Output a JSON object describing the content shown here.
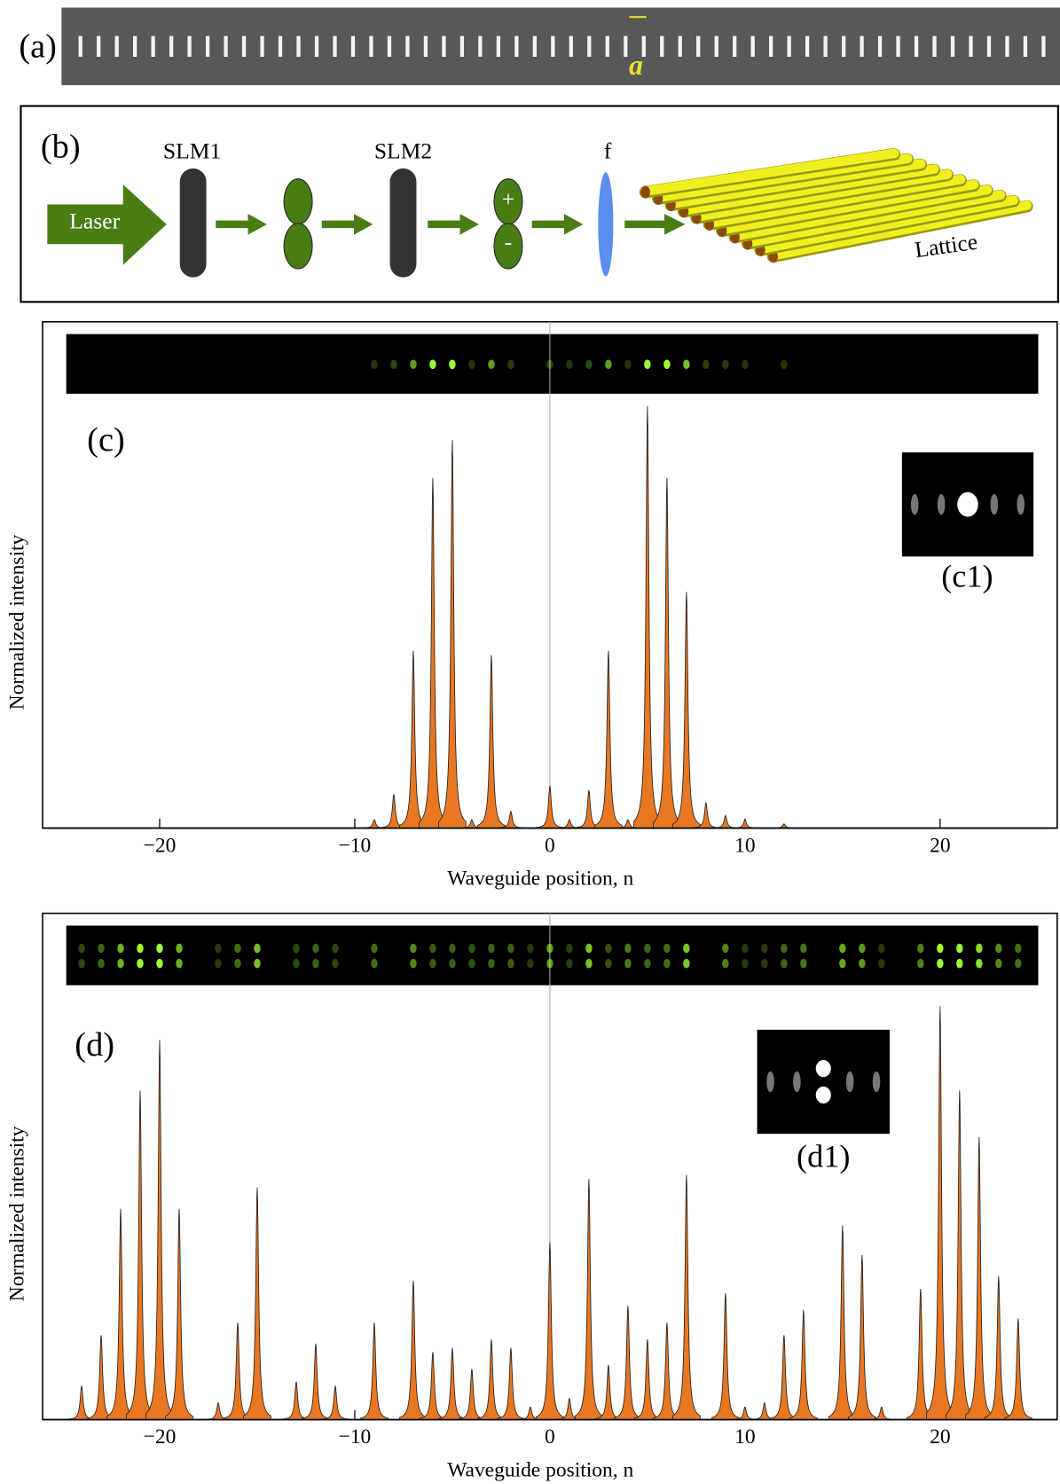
{
  "panel_a": {
    "label": "(a)",
    "scale_label": "a"
  },
  "panel_b": {
    "label": "(b)",
    "laser": "Laser",
    "slm1": "SLM1",
    "slm2": "SLM2",
    "plus": "+",
    "minus": "-",
    "lens": "f",
    "lattice": "Lattice"
  },
  "chart_data": [
    {
      "type": "area",
      "panel_label": "(c)",
      "inset_label": "(c1)",
      "ylabel": "Normalized intensity",
      "xlabel": "Waveguide position, n",
      "x": [
        -9,
        -8,
        -7,
        -6,
        -5,
        -4,
        -3,
        -2,
        0,
        1,
        2,
        3,
        4,
        5,
        6,
        7,
        8,
        9,
        10,
        12
      ],
      "values": [
        0.02,
        0.08,
        0.42,
        0.83,
        0.92,
        0.02,
        0.41,
        0.04,
        0.1,
        0.02,
        0.09,
        0.42,
        0.02,
        1.0,
        0.83,
        0.56,
        0.06,
        0.03,
        0.02,
        0.01
      ],
      "color": "#e87722",
      "xlim": [
        -26,
        26
      ],
      "ylim": [
        0,
        1.2
      ],
      "xticks": [
        {
          "value": -20,
          "label": "−20"
        },
        {
          "value": -10,
          "label": "−10"
        },
        0,
        10,
        20
      ]
    },
    {
      "type": "area",
      "panel_label": "(d)",
      "inset_label": "(d1)",
      "ylabel": "Normalized intensity",
      "xlabel": "Waveguide position, n",
      "x": [
        -24,
        -23,
        -22,
        -21,
        -20,
        -19,
        -17,
        -16,
        -15,
        -13,
        -12,
        -11,
        -9,
        -7,
        -6,
        -5,
        -4,
        -3,
        -2,
        -1,
        0,
        1,
        2,
        3,
        4,
        5,
        6,
        7,
        9,
        10,
        11,
        12,
        13,
        15,
        16,
        17,
        19,
        20,
        21,
        22,
        23,
        24
      ],
      "values": [
        0.08,
        0.2,
        0.5,
        0.78,
        0.9,
        0.5,
        0.04,
        0.23,
        0.55,
        0.09,
        0.18,
        0.08,
        0.23,
        0.33,
        0.16,
        0.17,
        0.12,
        0.19,
        0.17,
        0.03,
        0.42,
        0.05,
        0.57,
        0.13,
        0.27,
        0.19,
        0.23,
        0.58,
        0.3,
        0.03,
        0.04,
        0.2,
        0.26,
        0.46,
        0.39,
        0.03,
        0.31,
        0.98,
        0.78,
        0.67,
        0.34,
        0.24
      ],
      "color": "#e87722",
      "xlim": [
        -26,
        26
      ],
      "ylim": [
        0,
        1.2
      ],
      "xticks": [
        {
          "value": -20,
          "label": "−20"
        },
        {
          "value": -10,
          "label": "−10"
        },
        0,
        10,
        20
      ]
    }
  ]
}
